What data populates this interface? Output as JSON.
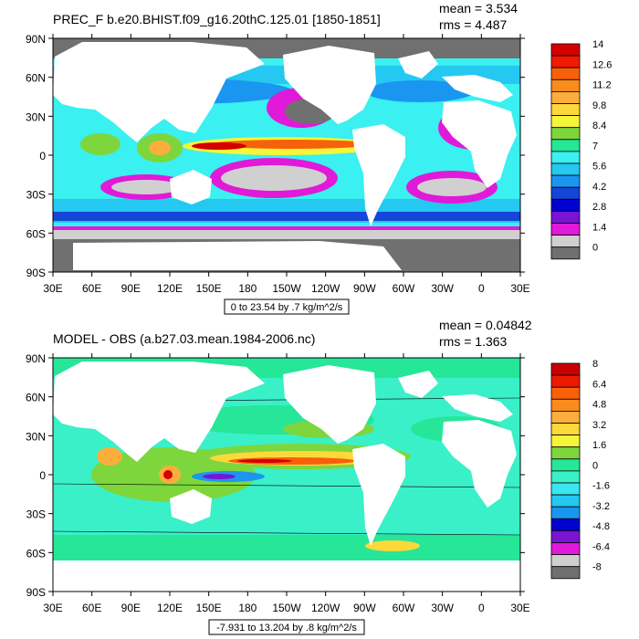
{
  "panels": [
    {
      "title": "PREC_F b.e20.BHIST.f09_g16.20thC.125.01 [1850-1851]",
      "mean": "mean = 3.534",
      "rms": "rms = 4.487",
      "range_label": "0 to 23.54 by .7 kg/m^2/s",
      "lat_labels": [
        "90N",
        "60N",
        "30N",
        "0",
        "30S",
        "60S",
        "90S"
      ],
      "lon_labels": [
        "30E",
        "60E",
        "90E",
        "120E",
        "150E",
        "180",
        "150W",
        "120W",
        "90W",
        "60W",
        "30W",
        "0",
        "30E"
      ],
      "colorbar": {
        "labels": [
          "14",
          "12.6",
          "11.2",
          "9.8",
          "8.4",
          "7",
          "5.6",
          "4.2",
          "2.8",
          "1.4",
          "0"
        ],
        "colors": [
          "#d40000",
          "#f21a00",
          "#f7610a",
          "#fa8c1e",
          "#fcae3c",
          "#fdd83a",
          "#f5f53a",
          "#7dd63c",
          "#26e698",
          "#3af0f0",
          "#24c8f0",
          "#1a96f0",
          "#1446d8",
          "#0000d0",
          "#7a14d2",
          "#e01ad8",
          "#d0d0d0",
          "#707070"
        ]
      }
    },
    {
      "title": "MODEL - OBS (a.b27.03.mean.1984-2006.nc)",
      "mean": "mean = 0.04842",
      "rms": "rms = 1.363",
      "range_label": "-7.931 to 13.204 by .8 kg/m^2/s",
      "lat_labels": [
        "90N",
        "60N",
        "30N",
        "0",
        "30S",
        "60S",
        "90S"
      ],
      "lon_labels": [
        "30E",
        "60E",
        "90E",
        "120E",
        "150E",
        "180",
        "150W",
        "120W",
        "90W",
        "60W",
        "30W",
        "0",
        "30E"
      ],
      "colorbar": {
        "labels": [
          "8",
          "6.4",
          "4.8",
          "3.2",
          "1.6",
          "0",
          "-1.6",
          "-3.2",
          "-4.8",
          "-6.4",
          "-8"
        ],
        "colors": [
          "#c80000",
          "#ee1a00",
          "#f7610a",
          "#fa8c1e",
          "#fcae3c",
          "#fdd83a",
          "#f5f53a",
          "#7dd63c",
          "#26e698",
          "#3af0c8",
          "#3ae6f0",
          "#24c8f0",
          "#1a96f0",
          "#0000d0",
          "#7a14d2",
          "#e01ad8",
          "#d0d0d0",
          "#707070"
        ]
      }
    }
  ]
}
